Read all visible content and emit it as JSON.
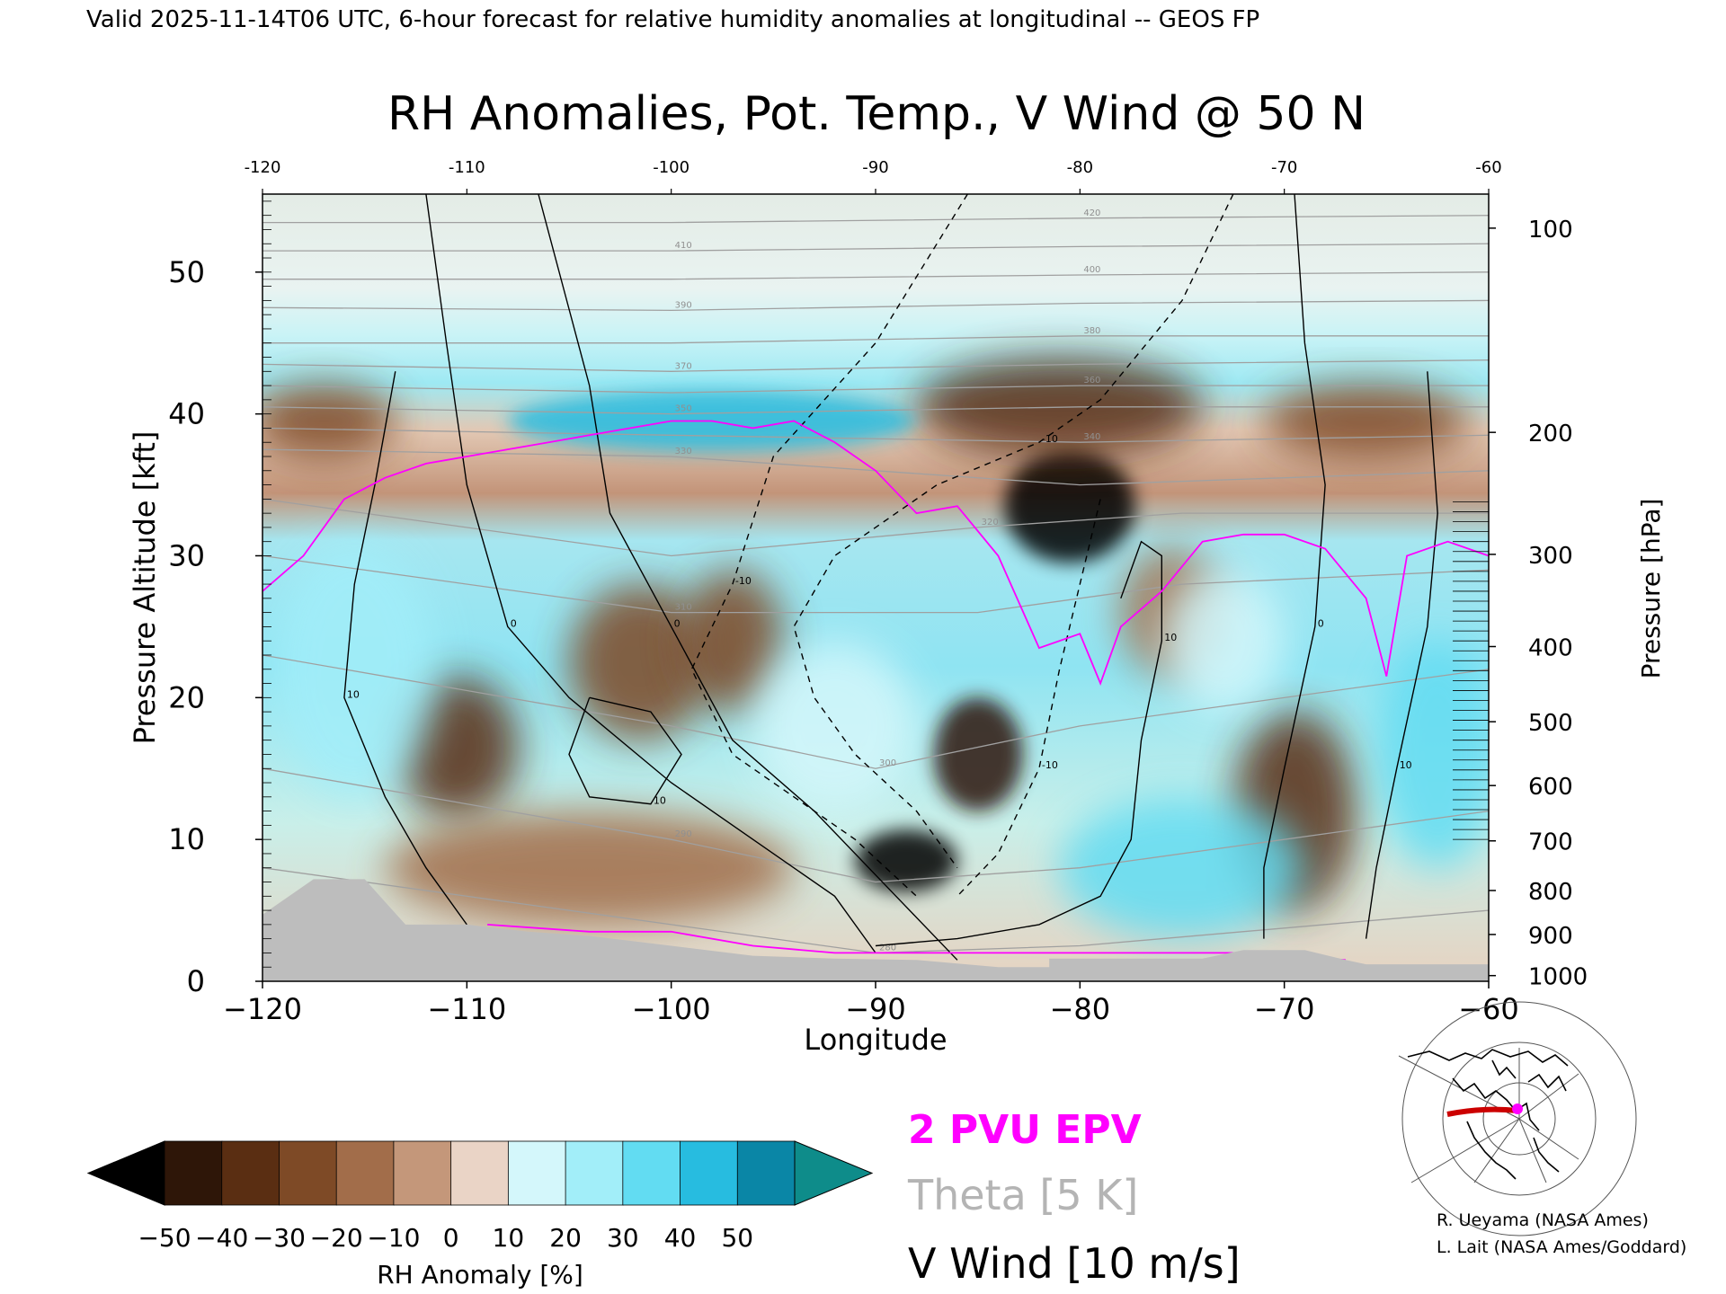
{
  "header": {
    "valid_line": "Valid 2025-11-14T06 UTC, 6-hour forecast for relative humidity anomalies at longitudinal -- GEOS FP"
  },
  "chart_data": {
    "type": "heatmap",
    "title": "RH Anomalies, Pot. Temp., V Wind @ 50 N",
    "xlabel": "Longitude",
    "ylabel": "Pressure Altitude [kft]",
    "y2label": "Pressure [hPa]",
    "xlim": [
      -120,
      -60
    ],
    "ylim": [
      0,
      55.5
    ],
    "x_ticks": [
      -120,
      -110,
      -100,
      -90,
      -80,
      -70,
      -60
    ],
    "x_ticklabels": [
      "−120",
      "−110",
      "−100",
      "−90",
      "−80",
      "−70",
      "−60"
    ],
    "top_ticklabels": [
      "-120",
      "-110",
      "-100",
      "-90",
      "-80",
      "-70",
      "-60"
    ],
    "y_ticks": [
      0,
      10,
      20,
      30,
      40,
      50
    ],
    "y_ticklabels": [
      "0",
      "10",
      "20",
      "30",
      "40",
      "50"
    ],
    "pressure_ticks": [
      {
        "label": "1000",
        "kft": 0.4
      },
      {
        "label": "900",
        "kft": 3.3
      },
      {
        "label": "800",
        "kft": 6.4
      },
      {
        "label": "700",
        "kft": 9.9
      },
      {
        "label": "600",
        "kft": 13.8
      },
      {
        "label": "500",
        "kft": 18.3
      },
      {
        "label": "400",
        "kft": 23.6
      },
      {
        "label": "300",
        "kft": 30.1
      },
      {
        "label": "200",
        "kft": 38.7
      },
      {
        "label": "100",
        "kft": 53.1
      }
    ],
    "colorbar": {
      "label": "RH Anomaly [%]",
      "levels": [
        -50,
        -40,
        -30,
        -20,
        -10,
        0,
        10,
        20,
        30,
        40,
        50
      ],
      "ticklabels": [
        "−50",
        "−40",
        "−30",
        "−20",
        "−10",
        "0",
        "10",
        "20",
        "30",
        "40",
        "50"
      ],
      "colors": [
        "#2e1608",
        "#5a2e12",
        "#7e4a26",
        "#a26d4a",
        "#c4977a",
        "#ead4c6",
        "#d4f7fb",
        "#a2eef9",
        "#62dcf2",
        "#27bce0",
        "#0a86a6"
      ],
      "under_color": "#000000",
      "over_color": "#0e8c8a"
    },
    "legend": [
      {
        "label": "2 PVU EPV",
        "color": "#ff00ff"
      },
      {
        "label": "Theta [5 K]",
        "color": "#b4b4b4"
      },
      {
        "label": "V Wind [10 m/s]",
        "color": "#000000"
      }
    ],
    "anomaly_fields": [
      {
        "sign": "dry",
        "lon": -80.5,
        "kft": 33.5,
        "rx": 3.2,
        "ry": 4.0,
        "value": -55
      },
      {
        "sign": "dry",
        "lon": -81,
        "kft": 40.5,
        "rx": 7,
        "ry": 3.5,
        "value": -40
      },
      {
        "sign": "dry",
        "lon": -66,
        "kft": 39.5,
        "rx": 5,
        "ry": 2.6,
        "value": -30
      },
      {
        "sign": "dry",
        "lon": -117,
        "kft": 39.5,
        "rx": 3.5,
        "ry": 2.6,
        "value": -28
      },
      {
        "sign": "dry",
        "lon": -110.5,
        "kft": 16.5,
        "rx": 3,
        "ry": 5,
        "value": -35
      },
      {
        "sign": "dry",
        "lon": -101.5,
        "kft": 22.5,
        "rx": 3.5,
        "ry": 5.5,
        "value": -30
      },
      {
        "sign": "dry",
        "lon": -97,
        "kft": 24,
        "rx": 2.5,
        "ry": 5,
        "value": -22
      },
      {
        "sign": "dry",
        "lon": -104,
        "kft": 8,
        "rx": 10,
        "ry": 4,
        "value": -20
      },
      {
        "sign": "dry",
        "lon": -88.5,
        "kft": 8.5,
        "rx": 2.5,
        "ry": 2.2,
        "value": -55
      },
      {
        "sign": "dry",
        "lon": -85,
        "kft": 16,
        "rx": 2.2,
        "ry": 4,
        "value": -45
      },
      {
        "sign": "dry",
        "lon": -69.5,
        "kft": 12,
        "rx": 3,
        "ry": 7,
        "value": -32
      },
      {
        "sign": "dry",
        "lon": -75.5,
        "kft": 26,
        "rx": 2.5,
        "ry": 4.5,
        "value": -15
      },
      {
        "sign": "moist",
        "lon": -98,
        "kft": 39.5,
        "rx": 10,
        "ry": 2.2,
        "value": 45
      },
      {
        "sign": "moist",
        "lon": -115.5,
        "kft": 22,
        "rx": 4,
        "ry": 9,
        "value": 28
      },
      {
        "sign": "moist",
        "lon": -75,
        "kft": 8,
        "rx": 6,
        "ry": 5,
        "value": 30
      },
      {
        "sign": "moist",
        "lon": -62.5,
        "kft": 16,
        "rx": 3,
        "ry": 8,
        "value": 32
      },
      {
        "sign": "moist",
        "lon": -92,
        "kft": 18,
        "rx": 4,
        "ry": 6,
        "value": 15
      },
      {
        "sign": "moist",
        "lon": -73,
        "kft": 24,
        "rx": 3,
        "ry": 5,
        "value": 18
      }
    ],
    "epv_2pvu_line": [
      [
        -120,
        27.5
      ],
      [
        -118,
        30
      ],
      [
        -116,
        34
      ],
      [
        -114,
        35.5
      ],
      [
        -112,
        36.5
      ],
      [
        -110,
        37
      ],
      [
        -108,
        37.5
      ],
      [
        -106,
        38
      ],
      [
        -104,
        38.5
      ],
      [
        -102,
        39
      ],
      [
        -100,
        39.5
      ],
      [
        -98,
        39.5
      ],
      [
        -96,
        39
      ],
      [
        -94,
        39.5
      ],
      [
        -92,
        38
      ],
      [
        -90,
        36
      ],
      [
        -88,
        33
      ],
      [
        -86,
        33.5
      ],
      [
        -84,
        30
      ],
      [
        -82,
        23.5
      ],
      [
        -80,
        24.5
      ],
      [
        -79,
        21
      ],
      [
        -78,
        25
      ],
      [
        -76,
        27.5
      ],
      [
        -74,
        31
      ],
      [
        -72,
        31.5
      ],
      [
        -70,
        31.5
      ],
      [
        -68,
        30.5
      ],
      [
        -66,
        27
      ],
      [
        -65,
        21.5
      ],
      [
        -64,
        30
      ],
      [
        -62,
        31
      ],
      [
        -60,
        30
      ]
    ],
    "epv_lower_line": [
      [
        -109,
        4
      ],
      [
        -104,
        3.5
      ],
      [
        -100,
        3.5
      ],
      [
        -96,
        2.5
      ],
      [
        -92,
        2
      ],
      [
        -88,
        2
      ],
      [
        -80,
        2
      ],
      [
        -72,
        2
      ],
      [
        -67,
        1.5
      ]
    ],
    "theta_contours": [
      {
        "label": "420",
        "points": [
          [
            -120,
            53.5
          ],
          [
            -100,
            53.5
          ],
          [
            -80,
            53.8
          ],
          [
            -60,
            54
          ]
        ]
      },
      {
        "label": "410",
        "points": [
          [
            -120,
            51.5
          ],
          [
            -100,
            51.5
          ],
          [
            -80,
            51.8
          ],
          [
            -60,
            52
          ]
        ]
      },
      {
        "label": "400",
        "points": [
          [
            -120,
            49.5
          ],
          [
            -100,
            49.5
          ],
          [
            -80,
            49.8
          ],
          [
            -60,
            50
          ]
        ]
      },
      {
        "label": "390",
        "points": [
          [
            -120,
            47.5
          ],
          [
            -100,
            47.3
          ],
          [
            -80,
            47.8
          ],
          [
            -60,
            48
          ]
        ]
      },
      {
        "label": "380",
        "points": [
          [
            -120,
            45
          ],
          [
            -100,
            45
          ],
          [
            -80,
            45.5
          ],
          [
            -60,
            45.5
          ]
        ]
      },
      {
        "label": "370",
        "points": [
          [
            -120,
            43.5
          ],
          [
            -100,
            43
          ],
          [
            -80,
            43.5
          ],
          [
            -60,
            43.8
          ]
        ]
      },
      {
        "label": "360",
        "points": [
          [
            -120,
            42
          ],
          [
            -100,
            41.5
          ],
          [
            -80,
            42
          ],
          [
            -60,
            42
          ]
        ]
      },
      {
        "label": "350",
        "points": [
          [
            -120,
            40.5
          ],
          [
            -100,
            40
          ],
          [
            -80,
            40.5
          ],
          [
            -60,
            40.5
          ]
        ]
      },
      {
        "label": "340",
        "points": [
          [
            -120,
            39
          ],
          [
            -100,
            38.5
          ],
          [
            -80,
            38
          ],
          [
            -60,
            38.5
          ]
        ]
      },
      {
        "label": "330",
        "points": [
          [
            -120,
            37.5
          ],
          [
            -100,
            37
          ],
          [
            -80,
            35
          ],
          [
            -60,
            36
          ]
        ]
      },
      {
        "label": "320",
        "points": [
          [
            -120,
            34
          ],
          [
            -100,
            30
          ],
          [
            -85,
            32
          ],
          [
            -75,
            33
          ],
          [
            -60,
            33
          ]
        ]
      },
      {
        "label": "310",
        "points": [
          [
            -120,
            30
          ],
          [
            -100,
            26
          ],
          [
            -85,
            26
          ],
          [
            -75,
            28
          ],
          [
            -60,
            29
          ]
        ]
      },
      {
        "label": "300",
        "points": [
          [
            -120,
            23
          ],
          [
            -100,
            18
          ],
          [
            -90,
            15
          ],
          [
            -80,
            18
          ],
          [
            -60,
            22
          ]
        ]
      },
      {
        "label": "290",
        "points": [
          [
            -120,
            15
          ],
          [
            -100,
            10
          ],
          [
            -90,
            7
          ],
          [
            -80,
            8
          ],
          [
            -60,
            12
          ]
        ]
      },
      {
        "label": "280",
        "points": [
          [
            -120,
            8
          ],
          [
            -100,
            4
          ],
          [
            -90,
            2
          ],
          [
            -80,
            2.5
          ],
          [
            -60,
            5
          ]
        ]
      }
    ],
    "vwind_contours": [
      {
        "label": "0",
        "style": "solid",
        "points": [
          [
            -112,
            55.5
          ],
          [
            -111,
            45
          ],
          [
            -110,
            35
          ],
          [
            -108,
            25
          ],
          [
            -105,
            20
          ],
          [
            -100,
            14
          ],
          [
            -95,
            9
          ],
          [
            -92,
            6
          ],
          [
            -90,
            2
          ]
        ]
      },
      {
        "label": "0",
        "style": "solid",
        "points": [
          [
            -106.5,
            55.5
          ],
          [
            -104,
            42
          ],
          [
            -103,
            33
          ],
          [
            -100,
            25
          ],
          [
            -97,
            17
          ],
          [
            -93,
            12
          ],
          [
            -89,
            6
          ],
          [
            -86,
            1.5
          ]
        ]
      },
      {
        "label": "10",
        "style": "solid",
        "points": [
          [
            -113.5,
            43
          ],
          [
            -114.5,
            35
          ],
          [
            -115.5,
            28
          ],
          [
            -116,
            20
          ],
          [
            -114,
            13
          ],
          [
            -112,
            8
          ],
          [
            -110,
            4
          ]
        ]
      },
      {
        "label": "10",
        "style": "solid",
        "points": [
          [
            -104,
            20
          ],
          [
            -101,
            19
          ],
          [
            -99.5,
            16
          ],
          [
            -101,
            12.5
          ],
          [
            -104,
            13
          ],
          [
            -105,
            16
          ],
          [
            -104,
            20
          ]
        ]
      },
      {
        "label": "0",
        "style": "solid",
        "points": [
          [
            -69.5,
            55.5
          ],
          [
            -69,
            45
          ],
          [
            -68,
            35
          ],
          [
            -68.5,
            25
          ],
          [
            -70,
            15
          ],
          [
            -71,
            8
          ],
          [
            -71,
            3
          ]
        ]
      },
      {
        "label": "10",
        "style": "solid",
        "points": [
          [
            -63,
            43
          ],
          [
            -62.5,
            33
          ],
          [
            -63,
            25
          ],
          [
            -64.5,
            15
          ],
          [
            -65.5,
            8
          ],
          [
            -66,
            3
          ]
        ]
      },
      {
        "label": "10",
        "style": "solid",
        "points": [
          [
            -78,
            27
          ],
          [
            -77,
            31
          ],
          [
            -76,
            30
          ],
          [
            -76,
            24
          ],
          [
            -77,
            17
          ],
          [
            -77.5,
            10
          ],
          [
            -79,
            6
          ],
          [
            -82,
            4
          ],
          [
            -86,
            3
          ],
          [
            -90,
            2.5
          ]
        ]
      },
      {
        "label": "-10",
        "style": "dashed",
        "points": [
          [
            -85.5,
            55.5
          ],
          [
            -90,
            45
          ],
          [
            -95,
            37
          ],
          [
            -97,
            28
          ],
          [
            -99,
            22
          ],
          [
            -97,
            16
          ],
          [
            -94,
            13
          ],
          [
            -91,
            10
          ],
          [
            -88,
            6
          ]
        ]
      },
      {
        "label": "-10",
        "style": "dashed",
        "points": [
          [
            -72.5,
            55.5
          ],
          [
            -75,
            48
          ],
          [
            -79,
            41
          ],
          [
            -82,
            38
          ],
          [
            -87,
            35
          ],
          [
            -92,
            30
          ],
          [
            -94,
            25
          ],
          [
            -93,
            20
          ],
          [
            -91,
            16
          ],
          [
            -88,
            12
          ],
          [
            -86,
            8
          ]
        ]
      },
      {
        "label": "-10",
        "style": "dashed",
        "points": [
          [
            -79,
            34
          ],
          [
            -80,
            28
          ],
          [
            -81,
            22
          ],
          [
            -82,
            15
          ],
          [
            -84,
            9
          ],
          [
            -86,
            6
          ]
        ]
      }
    ],
    "terrain_profile": [
      [
        -120,
        4.7
      ],
      [
        -117.5,
        7.2
      ],
      [
        -115,
        7.2
      ],
      [
        -113,
        4
      ],
      [
        -110,
        4
      ],
      [
        -107,
        3.5
      ],
      [
        -104,
        3.2
      ],
      [
        -100,
        2.5
      ],
      [
        -96,
        1.8
      ],
      [
        -92,
        1.6
      ],
      [
        -88,
        1.5
      ],
      [
        -84,
        1
      ],
      [
        -81.5,
        1
      ],
      [
        -81.5,
        1.6
      ],
      [
        -74,
        1.6
      ],
      [
        -72,
        2.2
      ],
      [
        -69,
        2.2
      ],
      [
        -67,
        1.5
      ],
      [
        -66,
        1.2
      ]
    ]
  },
  "inset_map": {
    "path_color": "#cc0000",
    "marker_color": "#ff00ff"
  },
  "credits": {
    "line1": "R. Ueyama (NASA Ames)",
    "line2": "L. Lait (NASA Ames/Goddard)"
  }
}
